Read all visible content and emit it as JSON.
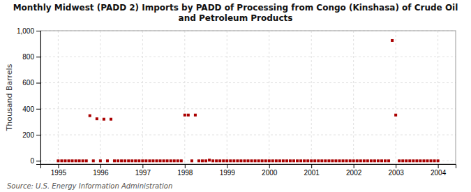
{
  "chart_data": {
    "type": "scatter",
    "title": "Monthly Midwest (PADD 2) Imports by PADD of Processing from Congo (Kinshasa) of Crude Oil\nand Petroleum Products",
    "ylabel": "Thousand Barrels",
    "source": "Source: U.S. Energy Information Administration",
    "color": "#aa0000",
    "marker": "square",
    "grid": true,
    "xlim": [
      1994.58,
      2004.42
    ],
    "ylim": [
      -25,
      1000
    ],
    "xticks": [
      1995,
      1996,
      1997,
      1998,
      1999,
      2000,
      2001,
      2002,
      2003,
      2004
    ],
    "yticks": [
      0,
      200,
      400,
      600,
      800,
      {
        "value": 1000,
        "label": "1,000"
      }
    ],
    "x": [
      1995.0,
      1995.083,
      1995.167,
      1995.25,
      1995.333,
      1995.417,
      1995.5,
      1995.583,
      1995.667,
      1995.75,
      1995.833,
      1995.917,
      1996.0,
      1996.083,
      1996.167,
      1996.25,
      1996.333,
      1996.417,
      1996.5,
      1996.583,
      1996.667,
      1996.75,
      1996.833,
      1996.917,
      1997.0,
      1997.083,
      1997.167,
      1997.25,
      1997.333,
      1997.417,
      1997.5,
      1997.583,
      1997.667,
      1997.75,
      1997.833,
      1997.917,
      1998.0,
      1998.083,
      1998.167,
      1998.25,
      1998.333,
      1998.417,
      1998.5,
      1998.583,
      1998.667,
      1998.75,
      1998.833,
      1998.917,
      1999.0,
      1999.083,
      1999.167,
      1999.25,
      1999.333,
      1999.417,
      1999.5,
      1999.583,
      1999.667,
      1999.75,
      1999.833,
      1999.917,
      2000.0,
      2000.083,
      2000.167,
      2000.25,
      2000.333,
      2000.417,
      2000.5,
      2000.583,
      2000.667,
      2000.75,
      2000.833,
      2000.917,
      2001.0,
      2001.083,
      2001.167,
      2001.25,
      2001.333,
      2001.417,
      2001.5,
      2001.583,
      2001.667,
      2001.75,
      2001.833,
      2001.917,
      2002.0,
      2002.083,
      2002.167,
      2002.25,
      2002.333,
      2002.417,
      2002.5,
      2002.583,
      2002.667,
      2002.75,
      2002.833,
      2002.917,
      2003.0,
      2003.083,
      2003.167,
      2003.25,
      2003.333,
      2003.417,
      2003.5,
      2003.583,
      2003.667,
      2003.75,
      2003.833,
      2003.917,
      2004.0
    ],
    "values": [
      0,
      0,
      0,
      0,
      0,
      0,
      0,
      0,
      0,
      347,
      0,
      323,
      0,
      320,
      0,
      320,
      0,
      0,
      0,
      0,
      0,
      0,
      0,
      0,
      0,
      0,
      0,
      0,
      0,
      0,
      0,
      0,
      0,
      0,
      0,
      0,
      352,
      352,
      0,
      352,
      0,
      0,
      0,
      5,
      0,
      0,
      0,
      0,
      0,
      0,
      0,
      0,
      0,
      0,
      0,
      0,
      0,
      0,
      0,
      0,
      0,
      0,
      0,
      0,
      0,
      0,
      0,
      0,
      0,
      0,
      0,
      0,
      0,
      0,
      0,
      0,
      0,
      0,
      0,
      0,
      0,
      0,
      0,
      0,
      0,
      0,
      0,
      0,
      0,
      0,
      0,
      0,
      0,
      0,
      0,
      925,
      352,
      0,
      0,
      0,
      0,
      0,
      0,
      0,
      0,
      0,
      0,
      0,
      0
    ]
  }
}
